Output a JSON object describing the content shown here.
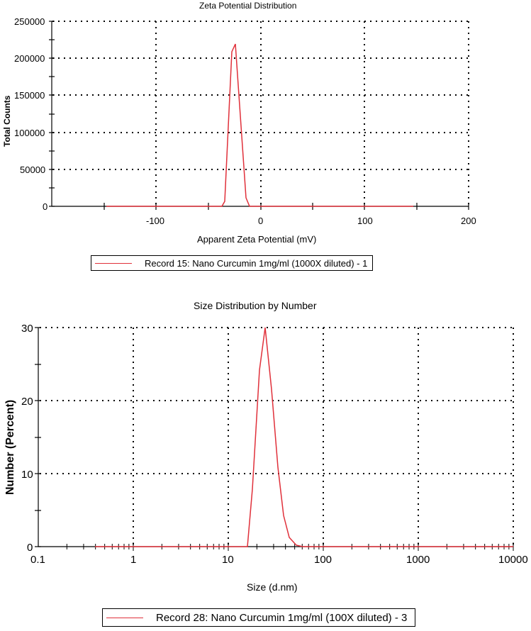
{
  "colors": {
    "series": "#e0303a",
    "axis": "#000000",
    "grid": "#000000"
  },
  "chart_data": [
    {
      "type": "line",
      "title": "Zeta Potential Distribution",
      "xlabel": "Apparent Zeta Potential (mV)",
      "ylabel": "Total Counts",
      "xlim": [
        -200,
        200
      ],
      "ylim": [
        0,
        250000
      ],
      "x_ticks": [
        -100,
        0,
        100,
        200
      ],
      "y_ticks": [
        0,
        50000,
        100000,
        150000,
        200000,
        250000
      ],
      "grid": true,
      "legend_position": "bottom",
      "series": [
        {
          "name": "Record 15: Nano Curcumin 1mg/ml (1000X diluted) -  1",
          "x": [
            -150,
            -37,
            -35,
            -28,
            -24.7,
            -14.5,
            -11,
            150
          ],
          "y": [
            0,
            0,
            6000,
            208000,
            219000,
            12000,
            0,
            0
          ]
        }
      ]
    },
    {
      "type": "line",
      "title": "Size Distribution by Number",
      "xlabel": "Size (d.nm)",
      "ylabel": "Number (Percent)",
      "xscale": "log",
      "xlim": [
        0.1,
        10000
      ],
      "ylim": [
        0,
        30
      ],
      "x_ticks": [
        "0.1",
        "1",
        "10",
        "100",
        "1000",
        "10000"
      ],
      "y_ticks": [
        0,
        10,
        20,
        30
      ],
      "grid": true,
      "legend_position": "bottom",
      "series": [
        {
          "name": "Record 28: Nano Curcumin 1mg/ml (100X diluted) -  3",
          "x": [
            0.4,
            15.9,
            18.2,
            21.0,
            24.4,
            28.2,
            32.7,
            37.8,
            43.8,
            50.7,
            58.8,
            10000
          ],
          "y": [
            0,
            0,
            7.9,
            24.1,
            30.0,
            21.5,
            10.9,
            4.3,
            1.3,
            0.2,
            0,
            0
          ]
        }
      ]
    }
  ],
  "zeta": {
    "title": "Zeta Potential Distribution",
    "ylabel": "Total Counts",
    "xlabel": "Apparent Zeta Potential (mV)",
    "yticks": [
      "250000",
      "200000",
      "150000",
      "100000",
      "50000",
      "0"
    ],
    "xticks": [
      "-100",
      "0",
      "100",
      "200"
    ],
    "legend": "Record 15: Nano Curcumin 1mg/ml (1000X diluted) -  1"
  },
  "size": {
    "title": "Size Distribution by Number",
    "ylabel": "Number (Percent)",
    "xlabel": "Size (d.nm)",
    "yticks": [
      "30",
      "20",
      "10",
      "0"
    ],
    "xticks": [
      "0.1",
      "1",
      "10",
      "100",
      "1000",
      "10000"
    ],
    "legend": "Record 28: Nano Curcumin 1mg/ml (100X diluted) -  3"
  }
}
